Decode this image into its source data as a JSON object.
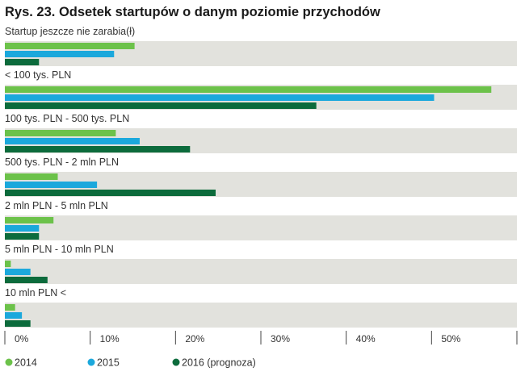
{
  "chart_data": {
    "type": "bar",
    "orientation": "horizontal",
    "title": "Rys. 23. Odsetek startupów o danym poziomie przychodów",
    "categories": [
      "Startup jeszcze nie zarabia(ł)",
      "< 100 tys. PLN",
      "100 tys. PLN - 500 tys. PLN",
      "500 tys. PLN - 2 mln PLN",
      "2 mln PLN - 5 mln PLN",
      "5 mln PLN - 10 mln PLN",
      "10 mln PLN <"
    ],
    "series": [
      {
        "name": "2014",
        "color": "#6CC24A",
        "values": [
          15.2,
          57.0,
          13.0,
          6.2,
          5.7,
          0.7,
          1.2
        ]
      },
      {
        "name": "2015",
        "color": "#1BA8DC",
        "values": [
          12.8,
          50.3,
          15.8,
          10.8,
          4.0,
          3.0,
          2.0
        ]
      },
      {
        "name": "2016 (prognoza)",
        "color": "#0C6B3C",
        "values": [
          4.0,
          36.5,
          21.7,
          24.7,
          4.0,
          5.0,
          3.0
        ]
      }
    ],
    "xlim": [
      0,
      60
    ],
    "xticks": [
      0,
      10,
      20,
      30,
      40,
      50
    ],
    "xtick_labels": [
      "0%",
      "10%",
      "20%",
      "30%",
      "40%",
      "50%"
    ],
    "background_band_color": "#E2E2DD",
    "legend_position": "bottom-left",
    "grid": false
  }
}
